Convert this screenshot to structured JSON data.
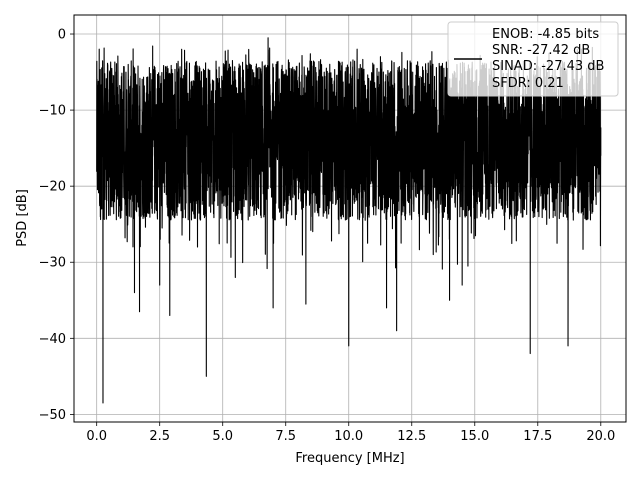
{
  "chart_data": {
    "type": "line",
    "xlabel": "Frequency [MHz]",
    "ylabel": "PSD [dB]",
    "xlim": [
      -0.9,
      21.0
    ],
    "ylim": [
      -51.0,
      2.5
    ],
    "x_ticks": [
      0.0,
      2.5,
      5.0,
      7.5,
      10.0,
      12.5,
      15.0,
      17.5,
      20.0
    ],
    "x_tick_labels": [
      "0.0",
      "2.5",
      "5.0",
      "7.5",
      "10.0",
      "12.5",
      "15.0",
      "17.5",
      "20.0"
    ],
    "y_ticks": [
      0,
      -10,
      -20,
      -30,
      -40,
      -50
    ],
    "y_tick_labels": [
      "0",
      "−10",
      "−20",
      "−30",
      "−40",
      "−50"
    ],
    "grid": true,
    "legend_position": "top-right",
    "legend_lines": [
      "ENOB: -4.85 bits",
      "SNR: -27.42 dB",
      "SINAD: -27.43 dB",
      "SFDR: 0.21"
    ],
    "series": [
      {
        "color": "#000000",
        "x": [
          0.0,
          0.1,
          0.2,
          0.25,
          0.3,
          0.5,
          1.0,
          1.5,
          1.7,
          2.0,
          2.5,
          2.9,
          3.0,
          3.5,
          4.0,
          4.35,
          4.5,
          5.0,
          5.5,
          6.0,
          6.5,
          6.8,
          7.0,
          7.5,
          8.0,
          8.3,
          8.5,
          9.0,
          9.5,
          10.0,
          10.5,
          11.0,
          11.5,
          11.9,
          12.0,
          12.5,
          13.0,
          13.5,
          14.0,
          14.5,
          15.0,
          15.5,
          16.0,
          16.5,
          17.0,
          17.2,
          17.5,
          17.8,
          18.0,
          18.5,
          18.7,
          19.0,
          19.5,
          20.0
        ],
        "y": [
          -18.0,
          -2.0,
          -23.0,
          -48.5,
          -15.0,
          -9.0,
          -11.0,
          -34.0,
          -36.5,
          -12.0,
          -33.0,
          -37.0,
          -14.0,
          -10.0,
          -28.0,
          -45.0,
          -12.0,
          -8.0,
          -32.0,
          -11.0,
          -9.0,
          -0.5,
          -36.0,
          -12.0,
          -9.0,
          -35.5,
          -13.0,
          -10.0,
          -11.0,
          -41.0,
          -12.0,
          -9.0,
          -36.0,
          -39.0,
          -11.0,
          -8.0,
          -12.0,
          -10.0,
          -35.0,
          -33.0,
          -9.0,
          -11.0,
          -13.0,
          -10.0,
          -12.0,
          -42.0,
          -9.0,
          -12.0,
          -11.0,
          -10.0,
          -41.0,
          -13.0,
          -12.0,
          -16.0
        ]
      }
    ],
    "noise_band": {
      "center_db": -14.0,
      "upper_envelope_db": -4.0,
      "lower_envelope_db": -25.0
    }
  }
}
